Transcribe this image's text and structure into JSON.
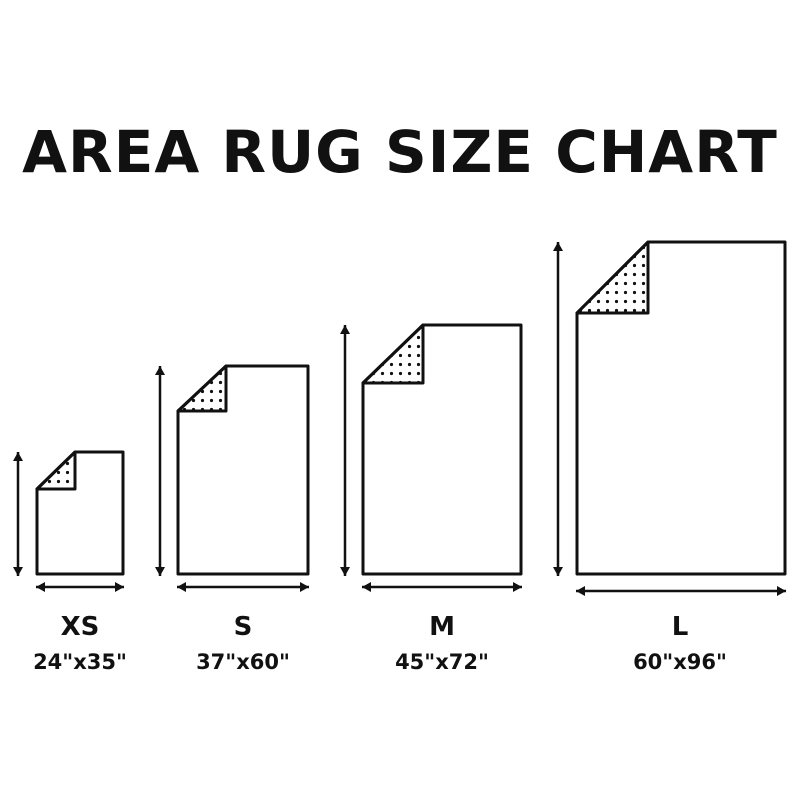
{
  "title": "AREA RUG SIZE CHART",
  "colors": {
    "ink": "#111111",
    "background": "#ffffff"
  },
  "rugs": [
    {
      "size": "XS",
      "dimensions": "24\"x35\"",
      "width_in": 24,
      "length_in": 35
    },
    {
      "size": "S",
      "dimensions": "37\"x60\"",
      "width_in": 37,
      "length_in": 60
    },
    {
      "size": "M",
      "dimensions": "45\"x72\"",
      "width_in": 45,
      "length_in": 72
    },
    {
      "size": "L",
      "dimensions": "60\"x96\"",
      "width_in": 60,
      "length_in": 96
    }
  ]
}
